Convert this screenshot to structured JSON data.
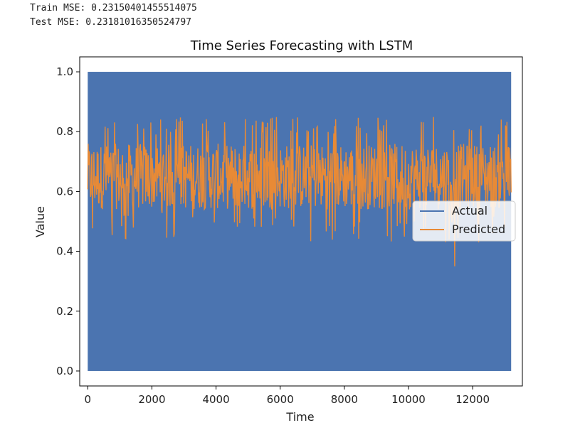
{
  "output": {
    "train_mse": "Train MSE: 0.23150401455514075",
    "test_mse": "Test MSE: 0.23181016350524797"
  },
  "chart_data": {
    "type": "line",
    "title": "Time Series Forecasting with LSTM",
    "xlabel": "Time",
    "ylabel": "Value",
    "xlim": [
      -250,
      13550
    ],
    "ylim": [
      -0.05,
      1.05
    ],
    "x_ticks": [
      "0",
      "2000",
      "4000",
      "6000",
      "8000",
      "10000",
      "12000"
    ],
    "y_ticks": [
      "0.0",
      "0.2",
      "0.4",
      "0.6",
      "0.8",
      "1.0"
    ],
    "legend_position": "center-right",
    "grid": false,
    "series": [
      {
        "name": "Actual",
        "color": "#1f77b4",
        "x_range": [
          0,
          13200
        ],
        "values_range": [
          0.0,
          1.0
        ],
        "note_values": "binary values alternating between 0 and 1"
      },
      {
        "name": "Predicted",
        "color": "#ff7f0e",
        "x_range": [
          0,
          13200
        ],
        "baseline": 0.65,
        "min": 0.35,
        "max": 0.85
      }
    ]
  }
}
